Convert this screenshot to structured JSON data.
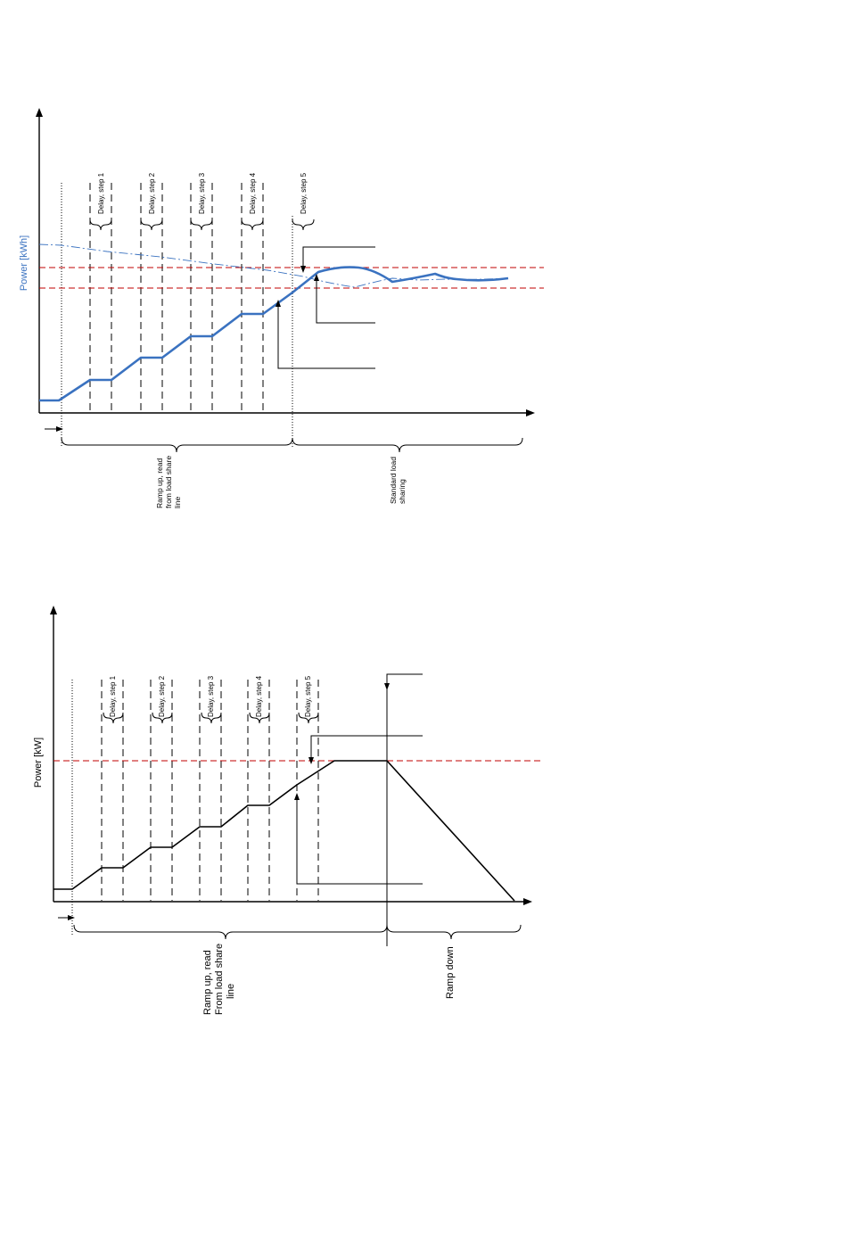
{
  "diagram_top": {
    "y_axis_label": "Power [kWh]",
    "delays": [
      "Delay, step 1",
      "Delay, step 2",
      "Delay, step 3",
      "Delay, step 4",
      "Delay, step 5"
    ],
    "brace_labels": [
      "Ramp up, read from load share line",
      "Standard load sharing"
    ],
    "colors": {
      "curve": "#3a72c0",
      "limit": "#c00000",
      "load_share": "#3a72c0"
    }
  },
  "diagram_bottom": {
    "y_axis_label": "Power [kW]",
    "delays": [
      "Delay, step 1",
      "Delay, step 2",
      "Delay, step 3",
      "Delay, step 4",
      "Delay, step 5"
    ],
    "brace_labels": [
      "Ramp up, read From load share line",
      "Ramp down"
    ],
    "colors": {
      "curve": "#000000",
      "limit": "#c00000"
    }
  }
}
